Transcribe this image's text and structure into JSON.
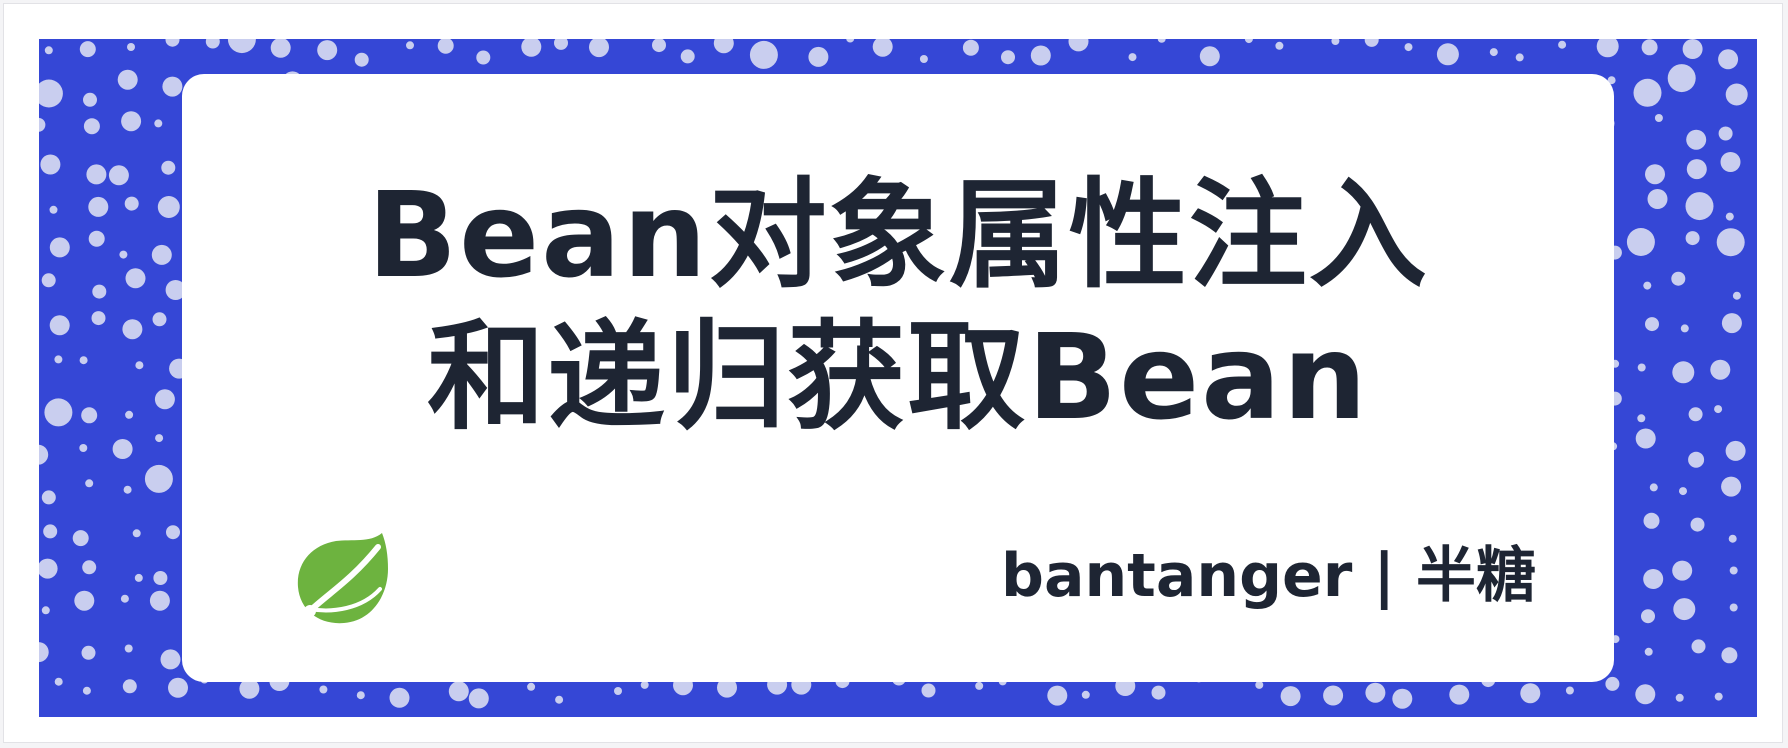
{
  "cover": {
    "title_line1": "Bean对象属性注入",
    "title_line2": "和递归获取Bean",
    "author": "bantanger | 半糖"
  },
  "logo": {
    "icon": "spring-leaf-icon"
  },
  "colors": {
    "background_blue": "#3547d6",
    "dot_color": "#c9ceef",
    "card_background": "#ffffff",
    "text_color": "#1e2533",
    "logo_green": "#6db33f"
  }
}
